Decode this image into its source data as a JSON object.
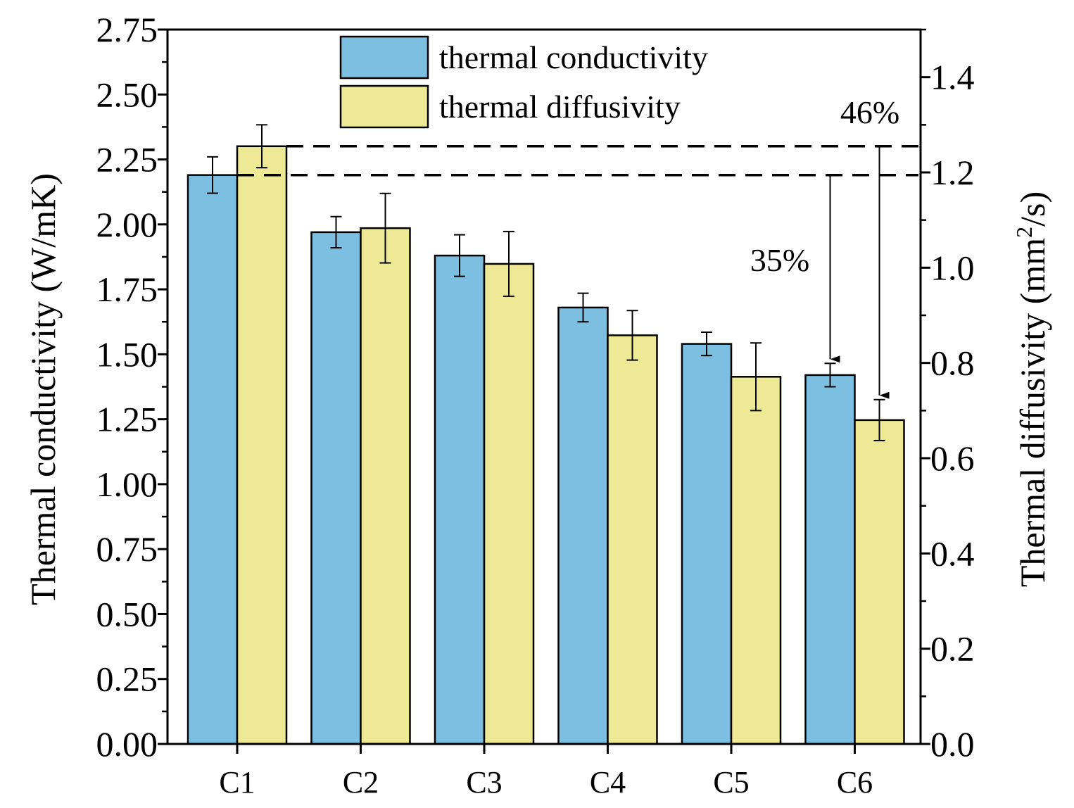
{
  "chart_data": {
    "type": "bar",
    "categories": [
      "C1",
      "C2",
      "C3",
      "C4",
      "C5",
      "C6"
    ],
    "series": [
      {
        "name": "thermal conductivity",
        "axis": "left",
        "color": "#7dbfe0",
        "values": [
          2.19,
          1.97,
          1.88,
          1.68,
          1.54,
          1.42
        ],
        "errors": [
          0.07,
          0.06,
          0.08,
          0.055,
          0.045,
          0.045
        ]
      },
      {
        "name": "thermal diffusivity",
        "axis": "right",
        "color": "#ede995",
        "values": [
          1.255,
          1.083,
          1.008,
          0.858,
          0.771,
          0.68
        ],
        "errors": [
          0.045,
          0.073,
          0.068,
          0.052,
          0.071,
          0.043
        ]
      }
    ],
    "ylabel": "Thermal conductivity (W/mK)",
    "y2label_main": "Thermal diffusivity (mm",
    "y2label_sup": "2",
    "y2label_tail": "/s)",
    "ylim": [
      0,
      2.75
    ],
    "y2lim": [
      0,
      1.5
    ],
    "yticks": [
      "0.00",
      "0.25",
      "0.50",
      "0.75",
      "1.00",
      "1.25",
      "1.50",
      "1.75",
      "2.00",
      "2.25",
      "2.50",
      "2.75"
    ],
    "y2ticks": [
      "0.0",
      "0.2",
      "0.4",
      "0.6",
      "0.8",
      "1.0",
      "1.2",
      "1.4"
    ],
    "legend_position": "top-center",
    "annotations": [
      {
        "text": "35%",
        "series": "thermal conductivity",
        "from": "C1",
        "to": "C6"
      },
      {
        "text": "46%",
        "series": "thermal diffusivity",
        "from": "C1",
        "to": "C6"
      }
    ]
  }
}
